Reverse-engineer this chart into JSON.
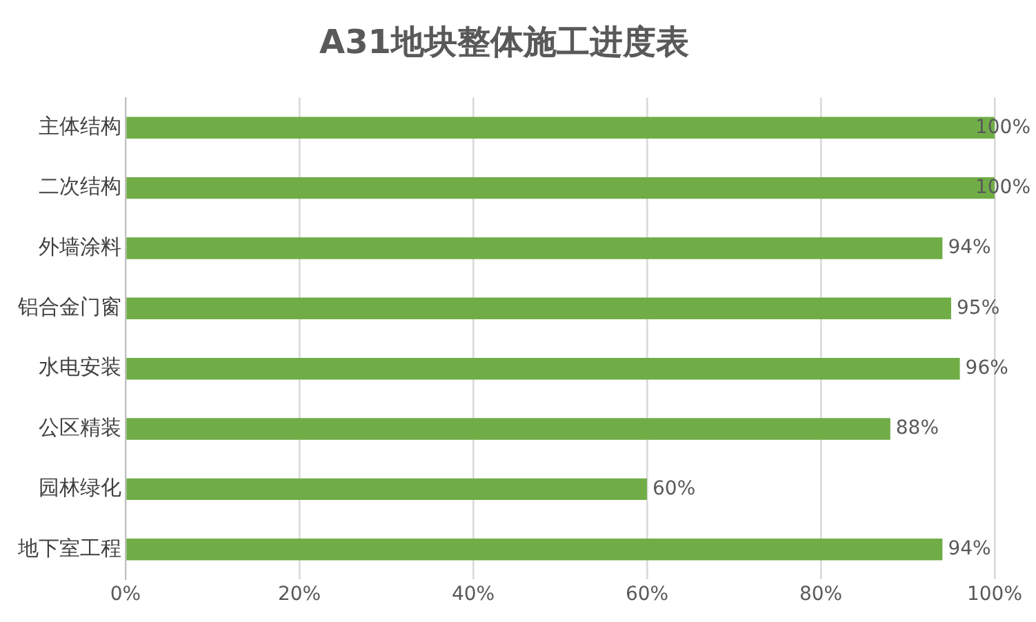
{
  "chart_data": {
    "type": "bar",
    "orientation": "horizontal",
    "title": "A31地块整体施工进度表",
    "categories": [
      "主体结构",
      "二次结构",
      "外墙涂料",
      "铝合金门窗",
      "水电安装",
      "公区精装",
      "园林绿化",
      "地下室工程"
    ],
    "values": [
      100,
      100,
      94,
      95,
      96,
      88,
      60,
      94
    ],
    "value_labels": [
      "100%",
      "100%",
      "94%",
      "95%",
      "96%",
      "88%",
      "60%",
      "94%"
    ],
    "color": "#70ad47",
    "xlim": [
      0,
      100
    ],
    "xticks": [
      {
        "value": 0,
        "label": "0%"
      },
      {
        "value": 20,
        "label": "20%"
      },
      {
        "value": 40,
        "label": "40%"
      },
      {
        "value": 60,
        "label": "60%"
      },
      {
        "value": 80,
        "label": "80%"
      },
      {
        "value": 100,
        "label": "100%"
      }
    ],
    "grid": "x",
    "legend": false
  }
}
